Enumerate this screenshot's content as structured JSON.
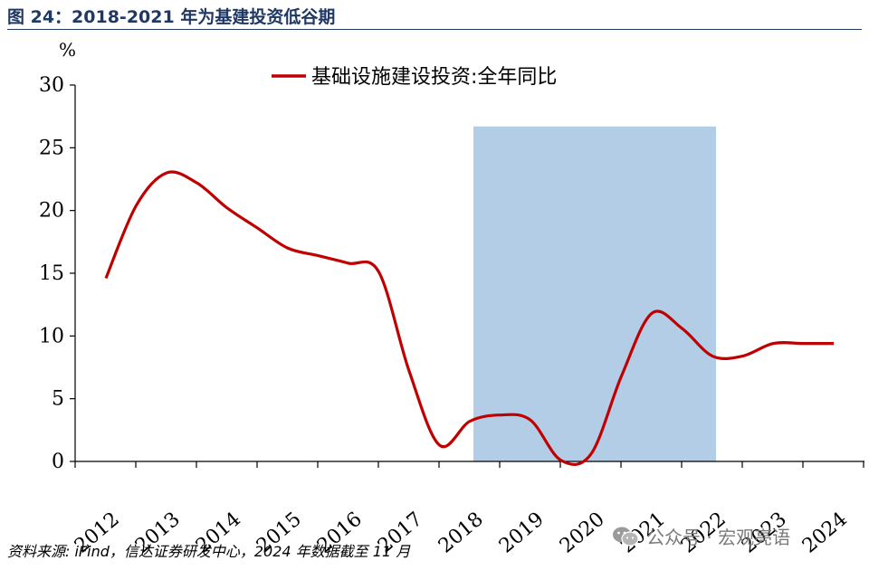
{
  "figure": {
    "title": "图 24：2018-2021 年为基建投资低谷期",
    "source": "资料来源: iFind，信达证券研发中心，2024 年数据截至 11 月",
    "watermark": "公众号 · 宏观亮语",
    "watermark_icon": "wechat-icon"
  },
  "chart_data": {
    "type": "line",
    "title": "",
    "ylabel": "%",
    "xlabel": "",
    "ylim": [
      0,
      30
    ],
    "yticks": [
      0,
      5,
      10,
      15,
      20,
      25,
      30
    ],
    "categories": [
      "2012",
      "2013",
      "2014",
      "2015",
      "2016",
      "2017",
      "2018",
      "2019",
      "2020",
      "2021",
      "2022",
      "2023",
      "2024"
    ],
    "legend": {
      "position": "top-center"
    },
    "grid": false,
    "series": [
      {
        "name": "基础设施建设投资:全年同比",
        "color": "#c00000",
        "x": [
          2012.0,
          2012.5,
          2013.0,
          2013.5,
          2014.0,
          2014.5,
          2015.0,
          2015.5,
          2016.0,
          2016.5,
          2017.0,
          2017.5,
          2018.0,
          2018.5,
          2019.0,
          2019.5,
          2020.0,
          2020.5,
          2021.0,
          2021.5,
          2022.0,
          2022.5,
          2023.0,
          2023.5,
          2024.0
        ],
        "values": [
          14.6,
          20.4,
          23.0,
          22.2,
          20.2,
          18.6,
          17.0,
          16.4,
          15.8,
          15.1,
          7.2,
          1.3,
          3.2,
          3.7,
          3.3,
          0.1,
          0.6,
          6.8,
          11.8,
          10.6,
          8.4,
          8.4,
          9.4,
          9.4,
          9.4
        ]
      }
    ],
    "shaded_range": {
      "x": [
        2018,
        2022
      ],
      "y": [
        0,
        26.7
      ],
      "color": "#b4cde6"
    }
  }
}
